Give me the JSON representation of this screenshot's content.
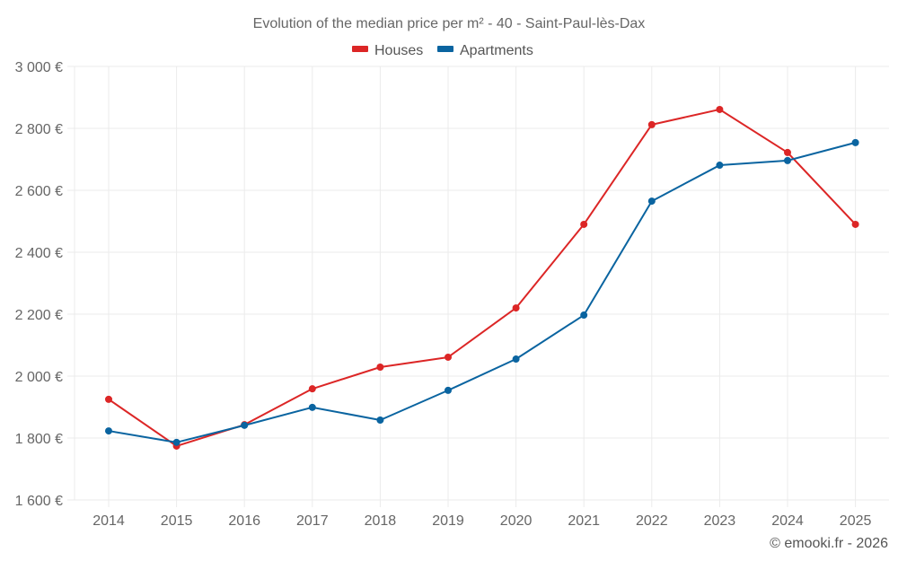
{
  "chart_data": {
    "type": "line",
    "title": "Evolution of the median price per m² - 40 - Saint-Paul-lès-Dax",
    "xlabel": "",
    "ylabel": "",
    "x": [
      "2014",
      "2015",
      "2016",
      "2017",
      "2018",
      "2019",
      "2020",
      "2021",
      "2022",
      "2023",
      "2024",
      "2025"
    ],
    "ylim": [
      1600,
      3000
    ],
    "yticks": [
      1600,
      1800,
      2000,
      2200,
      2400,
      2600,
      2800,
      3000
    ],
    "ytick_labels": [
      "1 600 €",
      "1 800 €",
      "2 000 €",
      "2 200 €",
      "2 400 €",
      "2 600 €",
      "2 800 €",
      "3 000 €"
    ],
    "grid": true,
    "legend_position": "top-center",
    "series": [
      {
        "name": "Houses",
        "color": "#dc2626",
        "values": [
          1925,
          1774,
          1843,
          1959,
          2029,
          2061,
          2220,
          2490,
          2812,
          2861,
          2722,
          2490
        ]
      },
      {
        "name": "Apartments",
        "color": "#0a64a0",
        "values": [
          1823,
          1786,
          1841,
          1899,
          1858,
          1954,
          2055,
          2197,
          2565,
          2681,
          2696,
          2754
        ]
      }
    ],
    "credit": "© emooki.fr - 2026"
  }
}
